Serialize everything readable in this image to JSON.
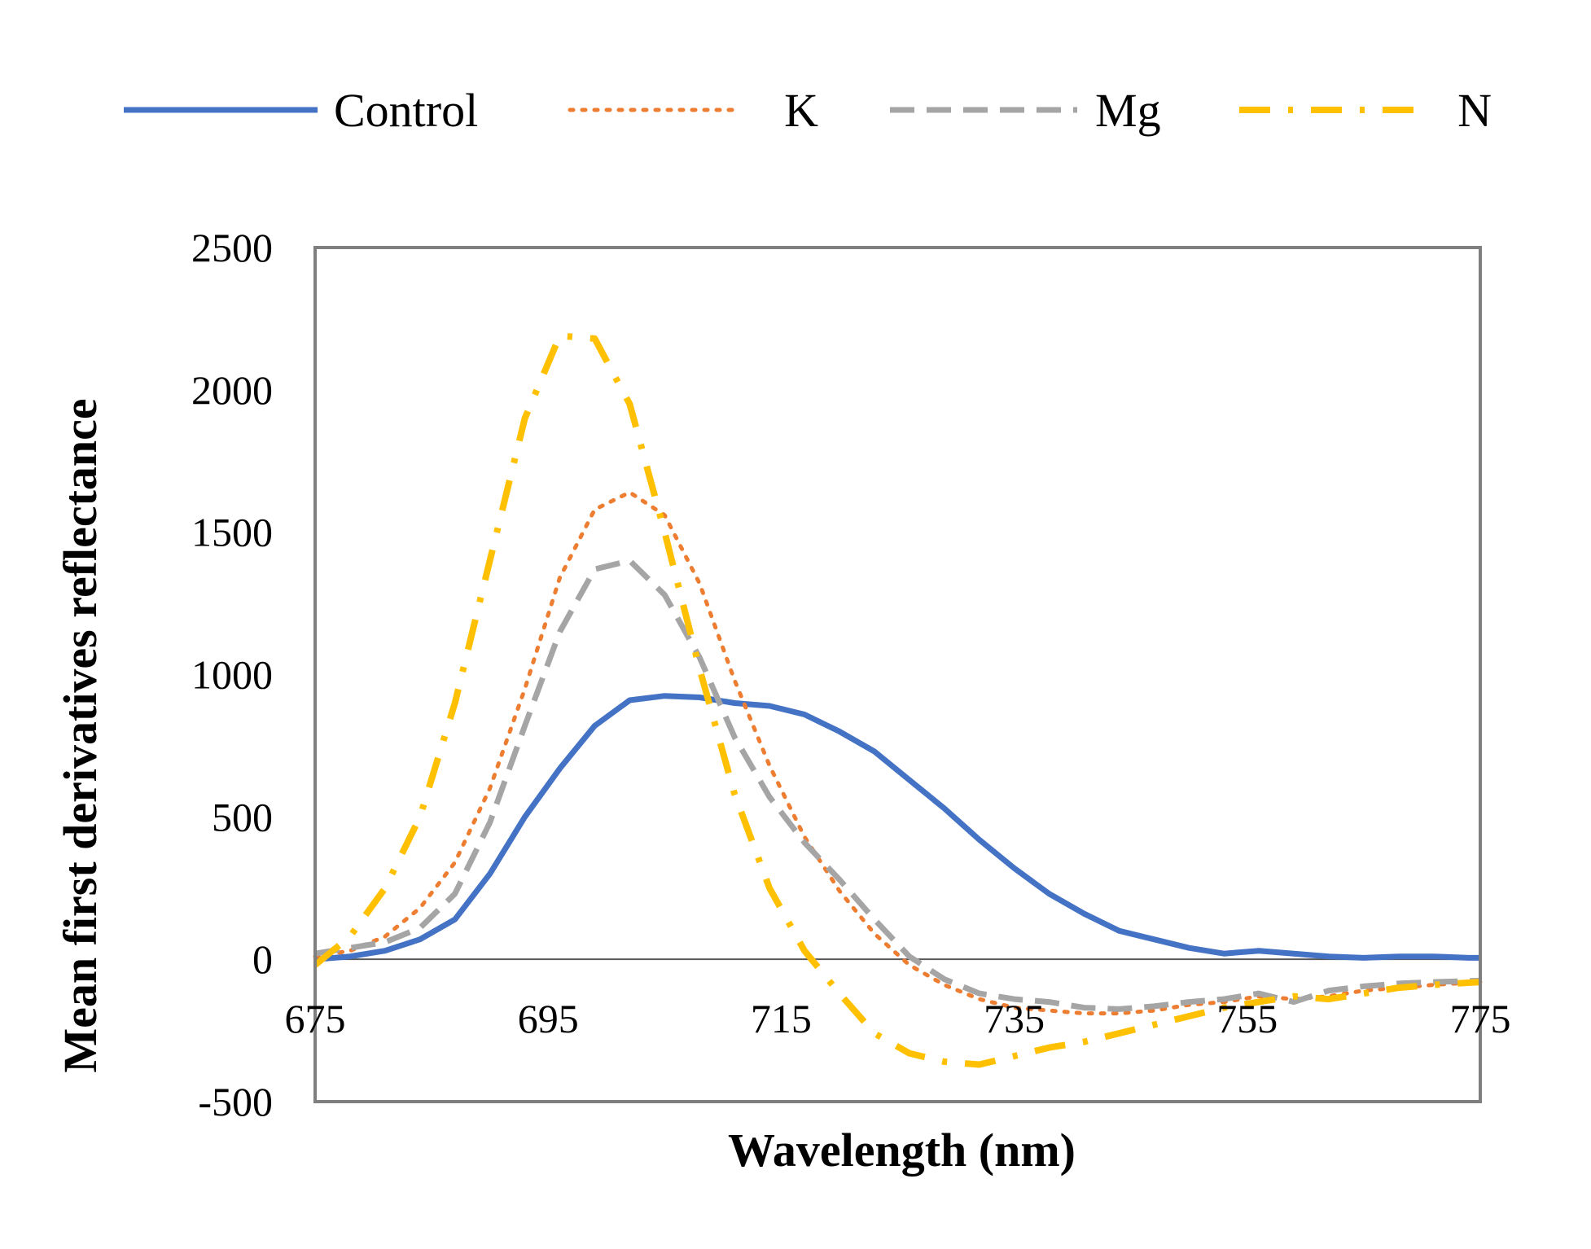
{
  "chart_data": {
    "type": "line",
    "title": "",
    "xlabel": "Wavelength (nm)",
    "ylabel": "Mean first derivatives reflectance",
    "xlim": [
      675,
      775
    ],
    "ylim": [
      -500,
      2500
    ],
    "x_ticks": [
      "675",
      "695",
      "715",
      "735",
      "755",
      "775"
    ],
    "y_ticks": [
      "2500",
      "2000",
      "1500",
      "1000",
      "500",
      "0",
      "-500"
    ],
    "x_tick_values": [
      675,
      695,
      715,
      735,
      755,
      775
    ],
    "y_tick_values": [
      2500,
      2000,
      1500,
      1000,
      500,
      0,
      -500
    ],
    "grid": false,
    "legend_position": "top",
    "series": [
      {
        "name": "Control",
        "color": "#4472C4",
        "style": "solid",
        "x": [
          675,
          678,
          681,
          684,
          687,
          690,
          693,
          696,
          699,
          702,
          705,
          708,
          711,
          714,
          717,
          720,
          723,
          726,
          729,
          732,
          735,
          738,
          741,
          744,
          747,
          750,
          753,
          756,
          759,
          762,
          765,
          768,
          771,
          774,
          775
        ],
        "y": [
          0,
          10,
          30,
          70,
          140,
          300,
          500,
          670,
          820,
          910,
          925,
          920,
          900,
          890,
          860,
          800,
          730,
          630,
          530,
          420,
          320,
          230,
          160,
          100,
          70,
          40,
          20,
          30,
          20,
          10,
          5,
          10,
          10,
          5,
          5
        ]
      },
      {
        "name": "K",
        "color": "#ED7D31",
        "style": "dotted",
        "x": [
          675,
          678,
          681,
          684,
          687,
          690,
          693,
          696,
          699,
          702,
          705,
          708,
          711,
          714,
          717,
          720,
          723,
          726,
          729,
          732,
          735,
          738,
          741,
          744,
          747,
          750,
          753,
          756,
          759,
          762,
          765,
          768,
          771,
          775
        ],
        "y": [
          10,
          30,
          80,
          180,
          340,
          600,
          950,
          1340,
          1580,
          1640,
          1560,
          1320,
          980,
          680,
          430,
          240,
          90,
          -20,
          -90,
          -140,
          -170,
          -180,
          -190,
          -190,
          -180,
          -160,
          -150,
          -130,
          -140,
          -130,
          -110,
          -100,
          -90,
          -80
        ]
      },
      {
        "name": "Mg",
        "color": "#A5A5A5",
        "style": "dashed",
        "x": [
          675,
          678,
          681,
          684,
          687,
          690,
          693,
          696,
          699,
          702,
          705,
          708,
          711,
          714,
          717,
          720,
          723,
          726,
          729,
          732,
          735,
          738,
          741,
          744,
          747,
          750,
          753,
          756,
          759,
          762,
          765,
          768,
          771,
          775
        ],
        "y": [
          20,
          40,
          60,
          110,
          230,
          480,
          820,
          1150,
          1370,
          1400,
          1280,
          1060,
          780,
          570,
          410,
          280,
          140,
          10,
          -70,
          -120,
          -140,
          -150,
          -170,
          -175,
          -165,
          -150,
          -140,
          -120,
          -150,
          -110,
          -95,
          -85,
          -80,
          -75
        ]
      },
      {
        "name": "N",
        "color": "#FFC000",
        "style": "dashdot",
        "x": [
          675,
          678,
          681,
          684,
          687,
          690,
          693,
          696,
          699,
          702,
          705,
          708,
          711,
          714,
          717,
          720,
          723,
          726,
          729,
          732,
          735,
          738,
          741,
          744,
          747,
          750,
          753,
          756,
          759,
          762,
          765,
          768,
          771,
          775
        ],
        "y": [
          -20,
          80,
          250,
          500,
          900,
          1400,
          1900,
          2190,
          2180,
          1950,
          1500,
          1020,
          580,
          250,
          30,
          -120,
          -260,
          -330,
          -360,
          -370,
          -340,
          -310,
          -290,
          -260,
          -230,
          -200,
          -170,
          -150,
          -130,
          -140,
          -120,
          -100,
          -90,
          -80
        ]
      }
    ]
  }
}
